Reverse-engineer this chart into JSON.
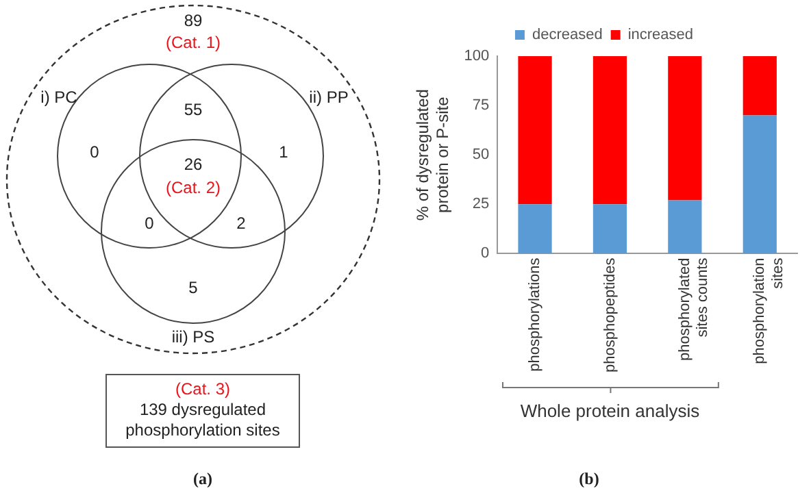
{
  "chart_data": [
    {
      "type": "other",
      "annotations": [
        "89",
        "(Cat. 1)",
        "i) PC",
        "ii) PP",
        "iii) PS",
        "0",
        "55",
        "1",
        "26",
        "(Cat. 2)",
        "0",
        "2",
        "5",
        "(Cat. 3)",
        "139 dysregulated phosphorylation sites",
        "(a)"
      ]
    },
    {
      "type": "bar",
      "stacked": true,
      "categories": [
        "phosphorylations",
        "phosphopeptides",
        "phosphorylated sites counts",
        "phosphorylation sites"
      ],
      "series": [
        {
          "name": "decreased",
          "color": "#5b9bd5",
          "values": [
            25,
            25,
            27,
            70
          ]
        },
        {
          "name": "increased",
          "color": "#ff0000",
          "values": [
            75,
            75,
            73,
            30
          ]
        }
      ],
      "ylabel": "% of dysregulated protein or P-site",
      "ylim": [
        0,
        100
      ],
      "yticks": [
        0,
        25,
        50,
        75,
        100
      ],
      "legend": "top",
      "annotations": [
        "Whole protein analysis",
        "(b)"
      ]
    }
  ]
}
